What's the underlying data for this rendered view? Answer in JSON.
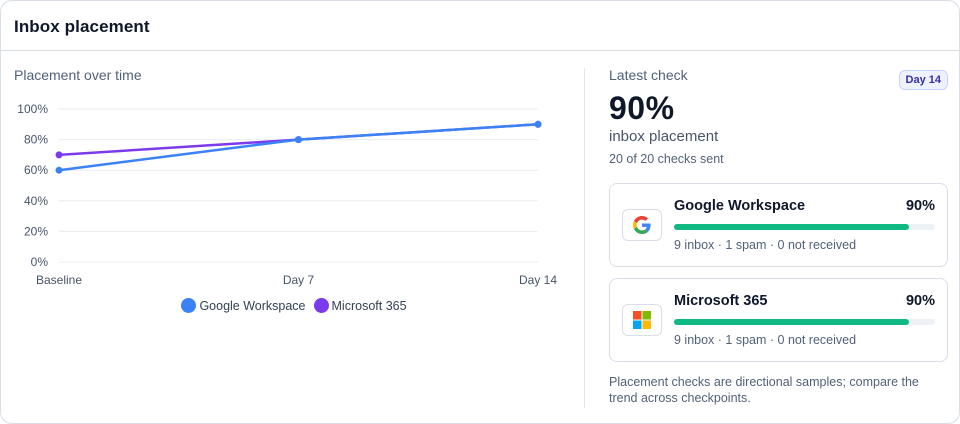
{
  "card": {
    "title": "Inbox placement"
  },
  "chart": {
    "title": "Placement over time"
  },
  "chart_data": {
    "type": "line",
    "title": "Placement over time",
    "xlabel": "",
    "ylabel": "",
    "categories": [
      "Baseline",
      "Day 7",
      "Day 14"
    ],
    "y_ticks": [
      "0%",
      "20%",
      "40%",
      "60%",
      "80%",
      "100%"
    ],
    "ylim": [
      0,
      100
    ],
    "grid": true,
    "legend": "bottom",
    "series": [
      {
        "name": "Google Workspace",
        "color": "#3b82f6",
        "values": [
          60,
          80,
          90
        ]
      },
      {
        "name": "Microsoft 365",
        "color": "#7c3aed",
        "values": [
          70,
          80,
          90
        ]
      }
    ]
  },
  "latest": {
    "label": "Latest check",
    "badge": "Day 14",
    "percent": "90%",
    "subtitle": "inbox placement",
    "checks_sent": "20 of 20 checks sent"
  },
  "providers": [
    {
      "name": "Google Workspace",
      "percent": "90%",
      "fill": 0.9,
      "stats": "9 inbox · 1 spam · 0 not received",
      "icon": "google-logo-icon",
      "bar_color": "#10b981"
    },
    {
      "name": "Microsoft 365",
      "percent": "90%",
      "fill": 0.9,
      "stats": "9 inbox · 1 spam · 0 not received",
      "icon": "microsoft-logo-icon",
      "bar_color": "#10b981"
    }
  ],
  "footnote": "Placement checks are directional samples; compare the trend across checkpoints."
}
